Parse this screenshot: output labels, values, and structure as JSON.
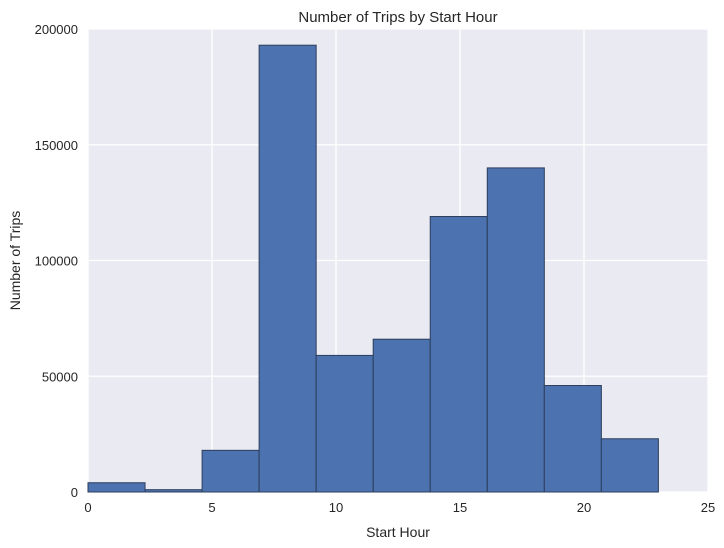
{
  "chart_data": {
    "type": "bar",
    "title": "Number of Trips by Start Hour",
    "xlabel": "Start Hour",
    "ylabel": "Number of Trips",
    "xlim": [
      0,
      25
    ],
    "ylim": [
      0,
      200000
    ],
    "xticks": [
      0,
      5,
      10,
      15,
      20,
      25
    ],
    "yticks": [
      0,
      50000,
      100000,
      150000,
      200000
    ],
    "xtick_labels": [
      "0",
      "5",
      "10",
      "15",
      "20",
      "25"
    ],
    "ytick_labels": [
      "0",
      "50000",
      "100000",
      "150000",
      "200000"
    ],
    "bin_edges": [
      0,
      2.3,
      4.6,
      6.9,
      9.2,
      11.5,
      13.8,
      16.1,
      18.4,
      20.7,
      23.0
    ],
    "values": [
      4000,
      1000,
      18000,
      193000,
      59000,
      66000,
      119000,
      140000,
      46000,
      23000
    ],
    "grid": true,
    "colors": {
      "background": "#eaeaf2",
      "grid": "#ffffff",
      "bar_fill": "#4c72b0",
      "bar_edge": "#2c3e5c",
      "text": "#262626"
    }
  }
}
